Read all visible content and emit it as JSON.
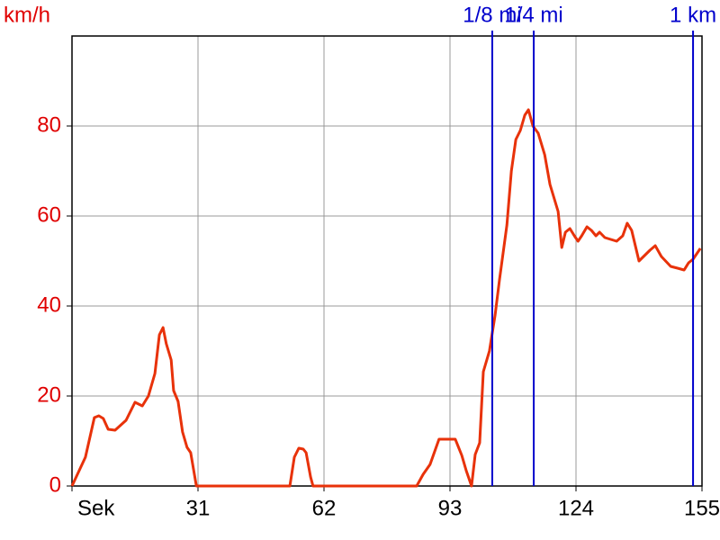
{
  "chart_data": {
    "type": "line",
    "y_label": "km/h",
    "xlim": [
      0,
      155
    ],
    "ylim": [
      0,
      100
    ],
    "xticks": [
      {
        "value": 0,
        "label": "Sek"
      },
      31,
      62,
      93,
      124,
      155
    ],
    "yticks": [
      0,
      20,
      40,
      60,
      80
    ],
    "grid": true,
    "x": [
      0,
      3.3,
      5.5,
      6.6,
      7.7,
      8.9,
      10.6,
      13.3,
      15.5,
      17.3,
      18.8,
      20.4,
      21.5,
      22.4,
      23.2,
      24.4,
      25,
      26.1,
      27.2,
      28.3,
      29.2,
      30.6,
      53.6,
      54.7,
      55.8,
      56.9,
      57.6,
      58.7,
      59.3,
      84.8,
      86.4,
      88.1,
      90.3,
      94.3,
      95.9,
      97,
      98.3,
      99.2,
      100.3,
      101.2,
      102.7,
      104.1,
      105.2,
      107,
      108.1,
      109.2,
      110.3,
      111.4,
      112.3,
      113.4,
      114.7,
      116.3,
      117.6,
      119.6,
      120.5,
      121.4,
      122.5,
      123.6,
      124.5,
      125.4,
      126.7,
      127.8,
      128.9,
      129.8,
      131.1,
      134,
      135.5,
      136.6,
      137.7,
      139.5,
      142.2,
      143.5,
      145,
      147.3,
      149,
      150.6,
      151.7,
      152.8,
      154.6
    ],
    "series": [
      {
        "color": "#e8320a",
        "values": [
          0,
          6.4,
          15.2,
          15.6,
          15,
          12.6,
          12.4,
          14.6,
          18.6,
          17.8,
          20,
          25,
          33.6,
          35.2,
          31.6,
          28,
          21.2,
          18.8,
          12,
          8.6,
          7.4,
          0,
          0,
          6.4,
          8.4,
          8.2,
          7.4,
          2,
          0,
          0,
          2.6,
          4.8,
          10.4,
          10.4,
          6.8,
          3.4,
          0,
          7,
          9.6,
          25.4,
          30,
          38,
          46,
          58,
          70,
          77,
          79,
          82.4,
          83.6,
          80,
          78.4,
          73.6,
          67,
          61,
          53,
          56.4,
          57.2,
          55.6,
          54.4,
          55.6,
          57.6,
          56.8,
          55.6,
          56.4,
          55.2,
          54.4,
          55.6,
          58.4,
          56.8,
          50,
          52.4,
          53.4,
          51,
          48.8,
          48.4,
          48,
          49.6,
          50.4,
          52.8
        ]
      }
    ],
    "y_color": "#e00000",
    "marker_color": "#0000cc",
    "markers": [
      {
        "label": "1/8 mi",
        "x": 103.4
      },
      {
        "label": "1/4 mi",
        "x": 113.6
      },
      {
        "label": "1 km",
        "x": 152.8
      }
    ]
  }
}
